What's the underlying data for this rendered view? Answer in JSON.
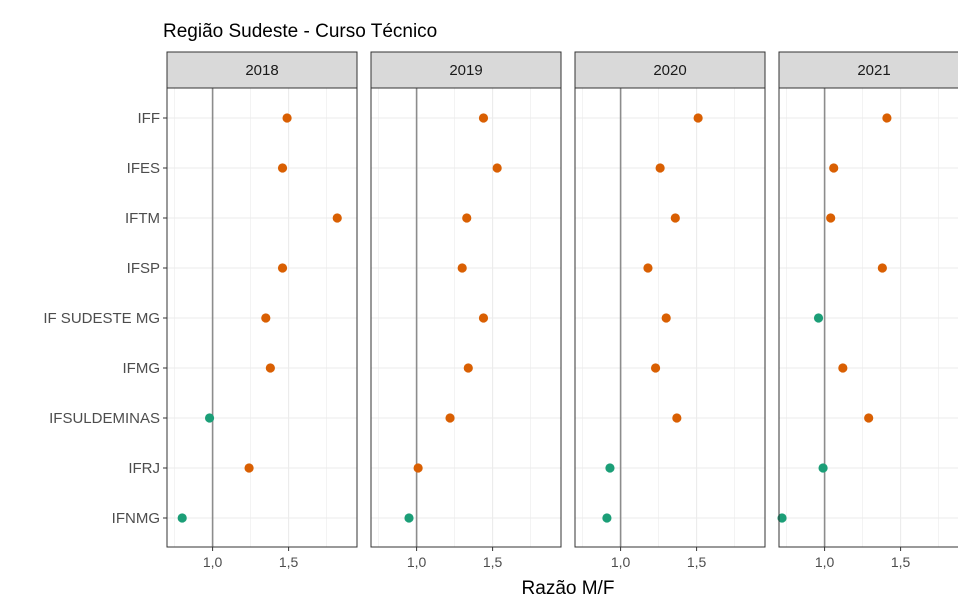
{
  "chart_data": {
    "type": "scatter",
    "title": "Região Sudeste - Curso Técnico",
    "xlabel": "Razão M/F",
    "ylabel": "",
    "facets": [
      "2018",
      "2019",
      "2020",
      "2021"
    ],
    "categories": [
      "IFF",
      "IFES",
      "IFTM",
      "IFSP",
      "IF SUDESTE MG",
      "IFMG",
      "IFSULDEMINAS",
      "IFRJ",
      "IFNMG"
    ],
    "xlim": [
      0.7,
      1.95
    ],
    "xticks": [
      1.0,
      1.5
    ],
    "xtick_labels": [
      "1,0",
      "1,5"
    ],
    "reference_line": 1.0,
    "grid": true,
    "colors": {
      "above_1": "#D95F02",
      "below_1": "#1B9E77"
    },
    "values": {
      "2018": {
        "IFF": 1.49,
        "IFES": 1.46,
        "IFTM": 1.82,
        "IFSP": 1.46,
        "IF SUDESTE MG": 1.35,
        "IFMG": 1.38,
        "IFSULDEMINAS": 0.98,
        "IFRJ": 1.24,
        "IFNMG": 0.8
      },
      "2019": {
        "IFF": 1.44,
        "IFES": 1.53,
        "IFTM": 1.33,
        "IFSP": 1.3,
        "IF SUDESTE MG": 1.44,
        "IFMG": 1.34,
        "IFSULDEMINAS": 1.22,
        "IFRJ": 1.01,
        "IFNMG": 0.95
      },
      "2020": {
        "IFF": 1.51,
        "IFES": 1.26,
        "IFTM": 1.36,
        "IFSP": 1.18,
        "IF SUDESTE MG": 1.3,
        "IFMG": 1.23,
        "IFSULDEMINAS": 1.37,
        "IFRJ": 0.93,
        "IFNMG": 0.91
      },
      "2021": {
        "IFF": 1.41,
        "IFES": 1.06,
        "IFTM": 1.04,
        "IFSP": 1.38,
        "IF SUDESTE MG": 0.96,
        "IFMG": 1.12,
        "IFSULDEMINAS": 1.29,
        "IFRJ": 0.99,
        "IFNMG": 0.72
      }
    }
  }
}
